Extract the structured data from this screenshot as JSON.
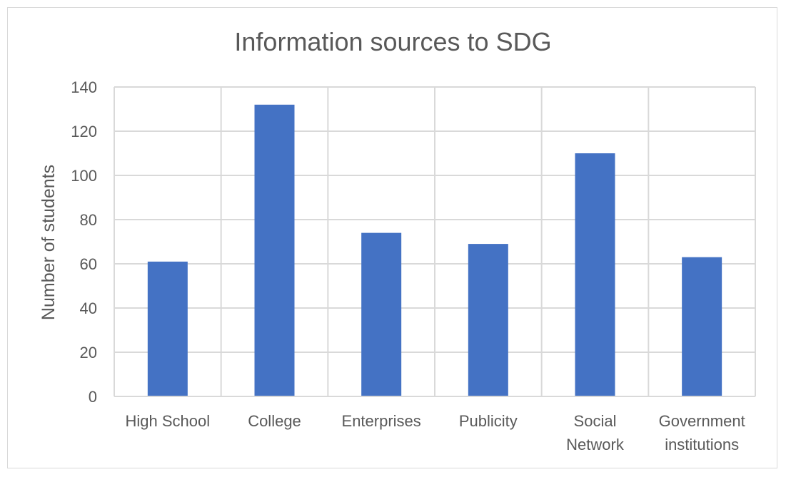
{
  "chart_data": {
    "type": "bar",
    "title": "Information sources to SDG",
    "xlabel": "",
    "ylabel": "Number of students",
    "ylim": [
      0,
      140
    ],
    "yticks": [
      0,
      20,
      40,
      60,
      80,
      100,
      120,
      140
    ],
    "grid": true,
    "categories": [
      [
        "High School"
      ],
      [
        "College"
      ],
      [
        "Enterprises"
      ],
      [
        "Publicity"
      ],
      [
        "Social",
        "Network"
      ],
      [
        "Government",
        "institutions"
      ]
    ],
    "values": [
      61,
      132,
      74,
      69,
      110,
      63
    ],
    "bar_color": "#4472c4"
  }
}
